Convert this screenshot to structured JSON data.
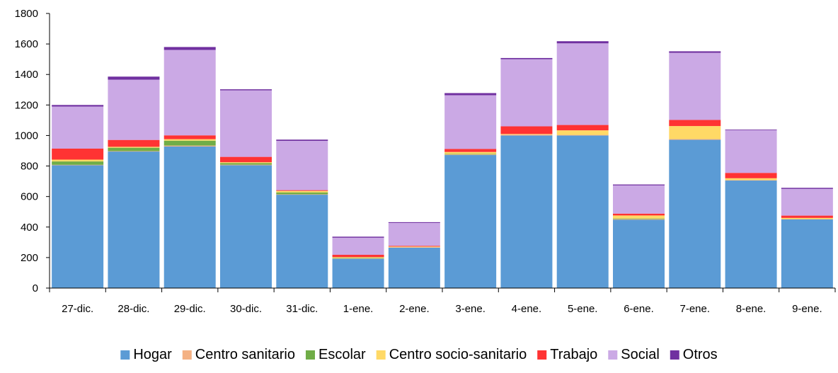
{
  "chart_data": {
    "type": "bar",
    "stacked": true,
    "title": "",
    "xlabel": "",
    "ylabel": "",
    "ylim": [
      0,
      1800
    ],
    "yticks": [
      0,
      200,
      400,
      600,
      800,
      1000,
      1200,
      1400,
      1600,
      1800
    ],
    "grid": false,
    "legend_position": "bottom",
    "categories": [
      "27-dic.",
      "28-dic.",
      "29-dic.",
      "30-dic.",
      "31-dic.",
      "1-ene.",
      "2-ene.",
      "3-ene.",
      "4-ene.",
      "5-ene.",
      "6-ene.",
      "7-ene.",
      "8-ene.",
      "9-ene."
    ],
    "series": [
      {
        "name": "Hogar",
        "color": "#5B9BD5",
        "values": [
          805,
          895,
          928,
          805,
          612,
          192,
          265,
          872,
          1000,
          1000,
          448,
          972,
          705,
          450
        ]
      },
      {
        "name": "Centro sanitario",
        "color": "#F4B183",
        "values": [
          3,
          3,
          6,
          4,
          3,
          2,
          3,
          4,
          6,
          4,
          4,
          5,
          3,
          2
        ]
      },
      {
        "name": "Escolar",
        "color": "#70AD47",
        "values": [
          22,
          22,
          32,
          10,
          12,
          3,
          0,
          4,
          0,
          0,
          4,
          0,
          0,
          0
        ]
      },
      {
        "name": "Centro socio-sanitario",
        "color": "#FFD966",
        "values": [
          12,
          6,
          10,
          6,
          10,
          6,
          4,
          12,
          4,
          30,
          20,
          85,
          12,
          8
        ]
      },
      {
        "name": "Trabajo",
        "color": "#FF3333",
        "values": [
          72,
          45,
          25,
          35,
          5,
          15,
          5,
          20,
          50,
          35,
          12,
          40,
          35,
          15
        ]
      },
      {
        "name": "Social",
        "color": "#CBA9E5",
        "values": [
          276,
          395,
          560,
          436,
          323,
          112,
          150,
          352,
          440,
          535,
          185,
          440,
          280,
          175
        ]
      },
      {
        "name": "Otros",
        "color": "#7030A0",
        "values": [
          10,
          20,
          19,
          7,
          8,
          7,
          5,
          14,
          8,
          14,
          6,
          10,
          4,
          7
        ]
      }
    ]
  }
}
